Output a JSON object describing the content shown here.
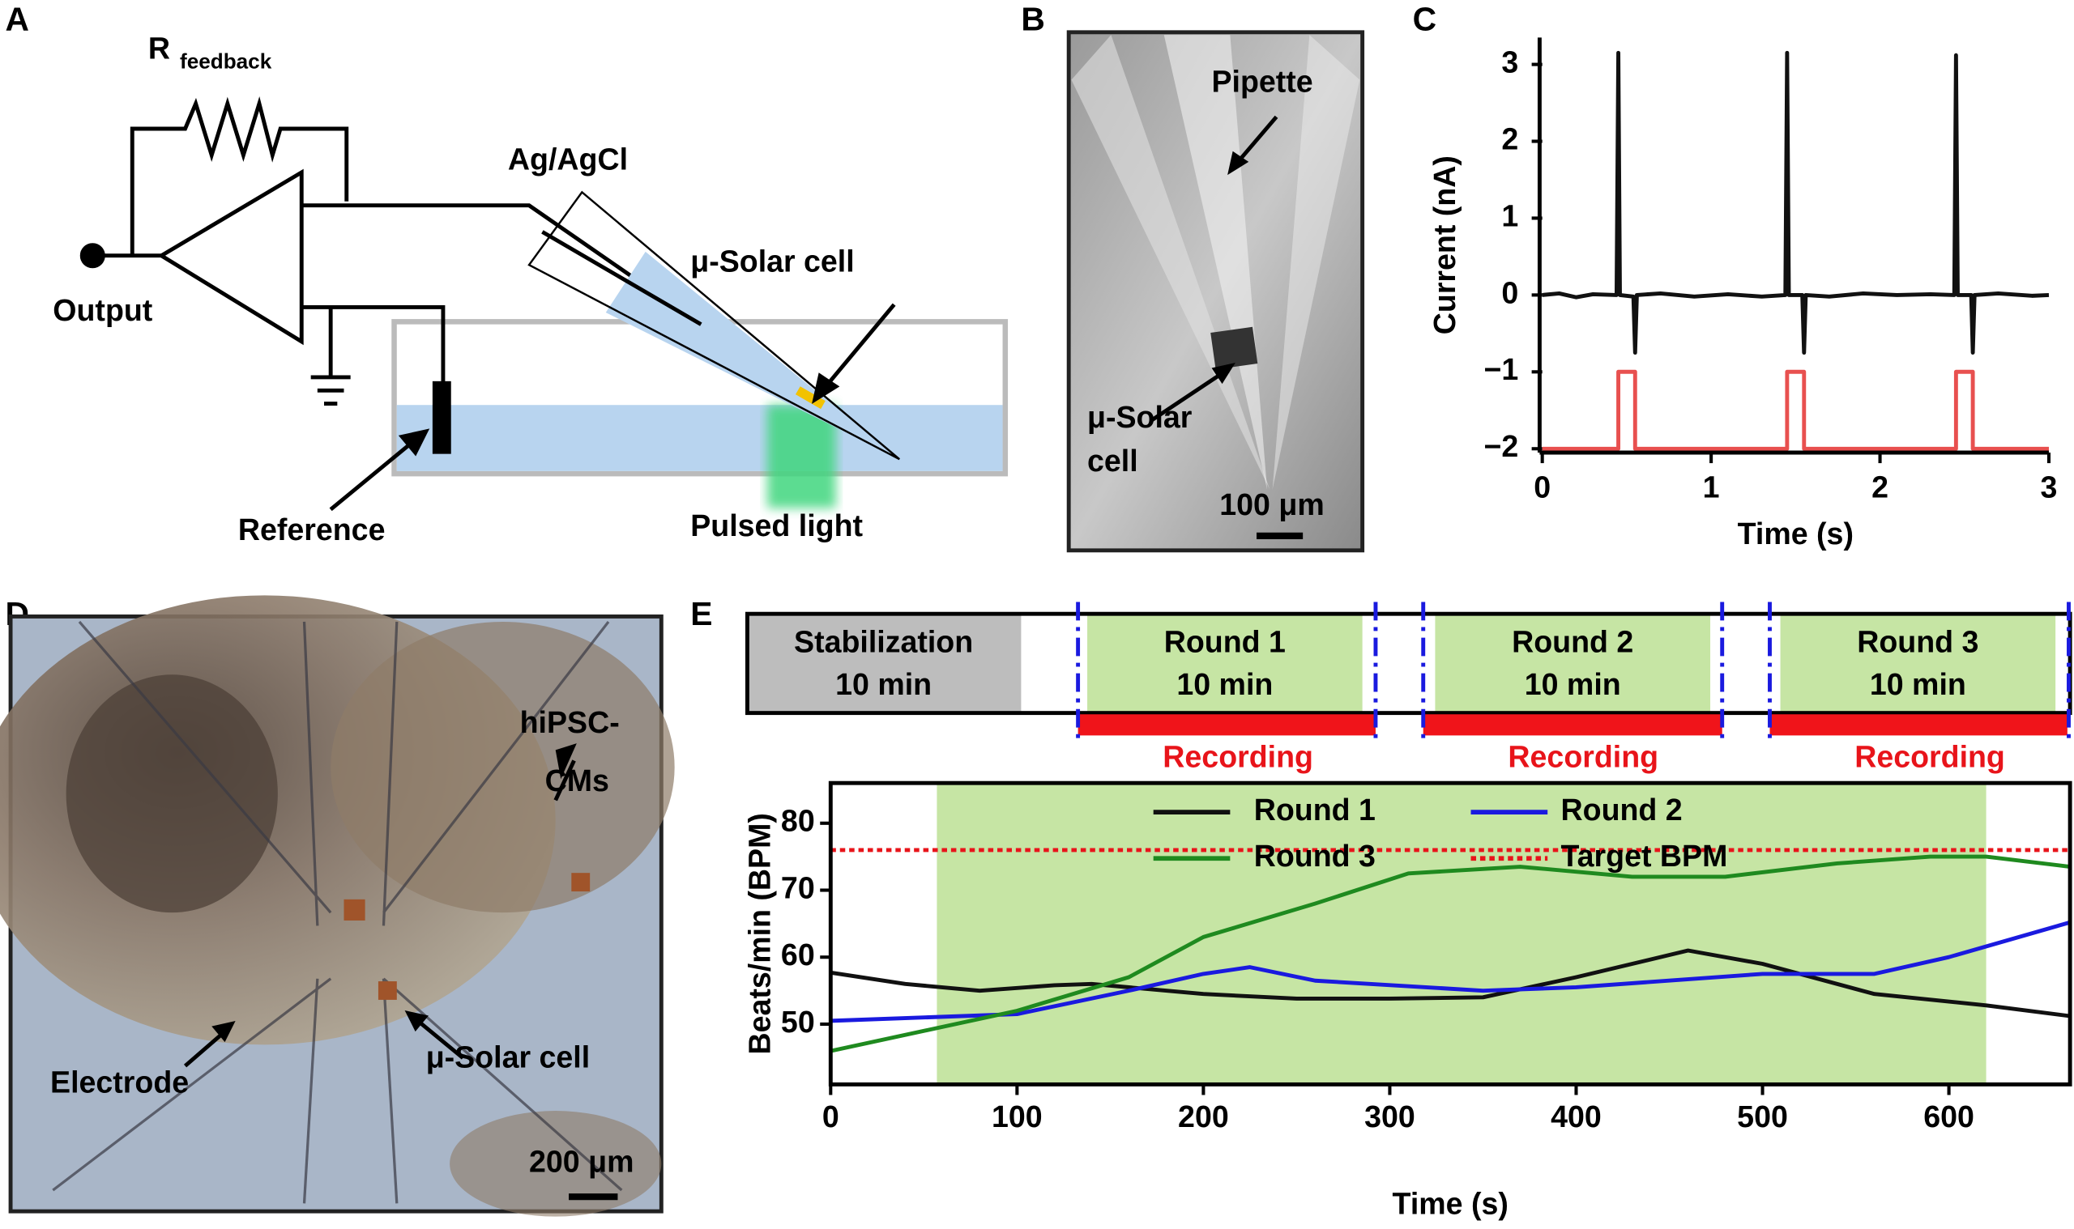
{
  "panel_labels": [
    "A",
    "B",
    "C",
    "D",
    "E"
  ],
  "diagram_a": {
    "r_main": "R",
    "r_sub": "feedback",
    "output": "Output",
    "electrode": "Ag/AgCl",
    "solar_cell": "μ-Solar cell",
    "reference": "Reference",
    "light": "Pulsed light"
  },
  "image_b": {
    "pipette": "Pipette",
    "cell_line1": "μ-Solar",
    "cell_line2": "cell",
    "scale": "100 μm"
  },
  "image_d": {
    "cells_line1": "hiPSC-",
    "cells_line2": "CMs",
    "electrode": "Electrode",
    "solar_cell": "μ-Solar cell",
    "scale": "200 μm"
  },
  "timeline_e": {
    "blocks": [
      {
        "title": "Stabilization",
        "duration": "10 min"
      },
      {
        "title": "Round 1",
        "duration": "10 min"
      },
      {
        "title": "Round 2",
        "duration": "10 min"
      },
      {
        "title": "Round 3",
        "duration": "10 min"
      }
    ],
    "recording": [
      "Recording",
      "Recording",
      "Recording"
    ]
  },
  "chart_data": [
    {
      "type": "line",
      "xlabel": "Time (s)",
      "ylabel": "Current (nA)",
      "xlim": [
        0,
        3
      ],
      "ylim": [
        -2.05,
        3.35
      ],
      "xticks": [
        0,
        1,
        2,
        3
      ],
      "yticks": [
        {
          "value": -2,
          "label": "−2"
        },
        {
          "value": -1,
          "label": "−1"
        },
        0,
        1,
        2,
        3
      ],
      "series": [
        {
          "color": "#111111",
          "x": [
            0,
            0.1,
            0.2,
            0.3,
            0.44,
            0.45,
            0.46,
            0.54,
            0.55,
            0.56,
            0.7,
            0.9,
            1.1,
            1.3,
            1.44,
            1.45,
            1.46,
            1.54,
            1.55,
            1.56,
            1.7,
            1.9,
            2.1,
            2.3,
            2.44,
            2.45,
            2.46,
            2.54,
            2.55,
            2.56,
            2.7,
            2.9,
            3
          ],
          "values": [
            0,
            0.02,
            -0.03,
            0.01,
            0,
            3.15,
            0,
            -0.02,
            -0.75,
            0,
            0.02,
            -0.02,
            0.01,
            -0.02,
            0,
            3.15,
            0,
            0,
            -0.75,
            0,
            -0.02,
            0.02,
            0,
            0.01,
            0,
            3.12,
            0,
            0,
            -0.75,
            0,
            0.02,
            -0.01,
            0
          ]
        },
        {
          "color": "#e8504f",
          "x": [
            0,
            0.45,
            0.45,
            0.55,
            0.55,
            1.45,
            1.45,
            1.55,
            1.55,
            2.45,
            2.45,
            2.55,
            2.55,
            3
          ],
          "values": [
            -2,
            -2,
            -1,
            -1,
            -2,
            -2,
            -1,
            -1,
            -2,
            -2,
            -1,
            -1,
            -2,
            -2
          ]
        }
      ]
    },
    {
      "type": "line",
      "xlabel": "Time (s)",
      "ylabel": "Beats/min (BPM)",
      "xlim": [
        0,
        665
      ],
      "ylim": [
        41,
        86
      ],
      "xticks": [
        0,
        100,
        200,
        300,
        400,
        500,
        600
      ],
      "yticks": [
        50,
        60,
        70,
        80
      ],
      "highlight": {
        "xlim": [
          57,
          620
        ],
        "color": "#c6e5a4"
      },
      "legend": "top",
      "series": [
        {
          "name": "Round 1",
          "color": "#111111",
          "x": [
            0,
            40,
            80,
            120,
            140,
            200,
            250,
            300,
            350,
            400,
            460,
            500,
            560,
            620,
            665
          ],
          "values": [
            57.7,
            56,
            55,
            55.8,
            56,
            54.5,
            53.8,
            53.8,
            54,
            57,
            61,
            59,
            54.5,
            52.8,
            51.2
          ]
        },
        {
          "name": "Round 2",
          "color": "#1a1adf",
          "x": [
            0,
            100,
            160,
            200,
            225,
            260,
            350,
            400,
            500,
            560,
            600,
            665
          ],
          "values": [
            50.5,
            51.5,
            55,
            57.5,
            58.5,
            56.5,
            55,
            55.5,
            57.5,
            57.5,
            60,
            65.2
          ]
        },
        {
          "name": "Round 3",
          "color": "#1f8a1f",
          "x": [
            0,
            100,
            160,
            200,
            260,
            310,
            370,
            430,
            480,
            540,
            590,
            620,
            665
          ],
          "values": [
            46,
            52,
            57,
            63,
            68,
            72.5,
            73.5,
            72,
            72,
            74,
            75,
            75,
            73.5
          ]
        },
        {
          "name": "Target BPM",
          "color": "#e8141a",
          "style": "dotted",
          "x": [
            0,
            665
          ],
          "values": [
            76,
            76
          ]
        }
      ]
    }
  ]
}
